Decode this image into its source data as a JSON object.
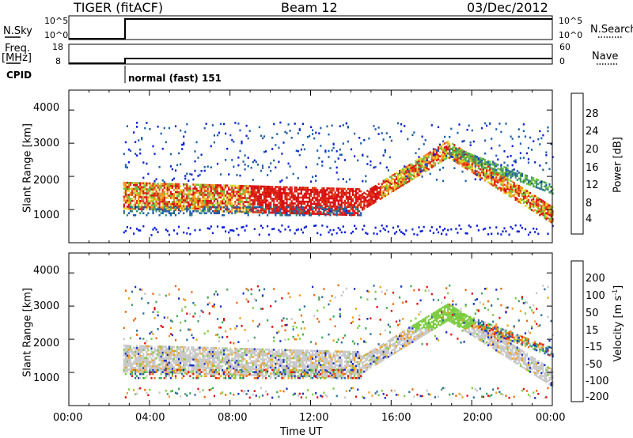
{
  "header": {
    "title": "TIGER (fitACF)",
    "beam": "Beam 12",
    "date": "03/Dec/2012"
  },
  "top_panels": {
    "nsky_label": "N.Sky",
    "nsky_ticks": [
      "10^5",
      "10^0"
    ],
    "nsearch_label": "N.Search",
    "nsearch_ticks": [
      "10^5",
      "10^0"
    ],
    "freq_label": "Freq.",
    "freq_unit": "[MHz]",
    "freq_ticks": [
      "18",
      "8"
    ],
    "nave_label": "Nave",
    "nave_ticks": [
      "60",
      "0"
    ],
    "cpid_label": "CPID",
    "cpid_value": "normal (fast) 151"
  },
  "chart_data": [
    {
      "type": "heatmap",
      "name": "power",
      "ylabel": "Slant Range [km]",
      "yticks": [
        "1000",
        "2000",
        "3000",
        "4000"
      ],
      "ylim": [
        0,
        4600
      ],
      "colorbar_label": "Power [dB]",
      "colorbar_ticks": [
        "4",
        "8",
        "12",
        "16",
        "20",
        "24",
        "28"
      ],
      "colors": [
        "#0b1fd6",
        "#1f5fa8",
        "#3f8f6a",
        "#6cc03c",
        "#e4d62a",
        "#f09020",
        "#e03a10",
        "#d81010"
      ],
      "x_start_hour": 2.7,
      "bands": [
        {
          "t": [
            2.7,
            14.5
          ],
          "r_start": 1400,
          "r_end": 1200,
          "width": 400
        },
        {
          "t": [
            14.5,
            18.8
          ],
          "r_start": 1200,
          "r_end": 2800,
          "width": 250
        },
        {
          "t": [
            18.8,
            24
          ],
          "r_start": 2800,
          "r_end": 800,
          "width": 250
        }
      ]
    },
    {
      "type": "heatmap",
      "name": "velocity",
      "ylabel": "Slant Range [km]",
      "yticks": [
        "1000",
        "2000",
        "3000",
        "4000"
      ],
      "ylim": [
        0,
        4600
      ],
      "colorbar_label": "Velocity [m s^-1]",
      "colorbar_ticks": [
        "200",
        "100",
        "50",
        "15",
        "-15",
        "-50",
        "-100",
        "-200"
      ],
      "colors": [
        "#1a2fc8",
        "#2f6f9c",
        "#3fa45a",
        "#7ccc40",
        "#c8c8c8",
        "#f0a020",
        "#ee6a10",
        "#e01010"
      ],
      "xticks": [
        "00:00",
        "04:00",
        "08:00",
        "12:00",
        "16:00",
        "20:00",
        "00:00"
      ],
      "xlabel": "Time UT",
      "xlim": [
        0,
        24
      ]
    }
  ]
}
